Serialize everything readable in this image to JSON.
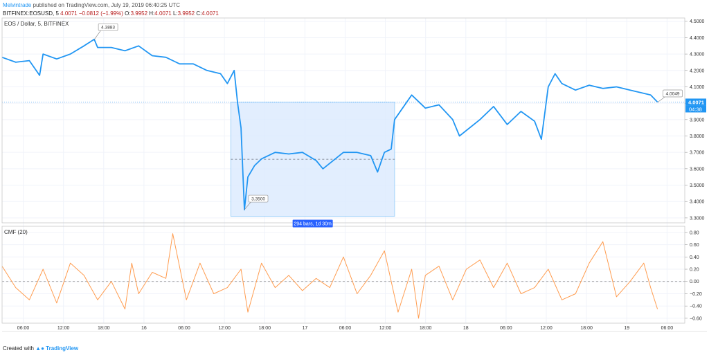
{
  "header": {
    "author": "Melvintrade",
    "published": "published on TradingView.com, July 19, 2019 06:40:25 UTC",
    "symbol": "BITFINEX:EOSUSD, 5",
    "last": "4.0071",
    "change": "−0.0812 (−1.99%)",
    "o_label": "O:",
    "o": "3.9952",
    "h_label": "H:",
    "h": "4.0071",
    "l_label": "L:",
    "l": "3.9952",
    "c_label": "C:",
    "c": "4.0071"
  },
  "legend": {
    "main": "EOS / Dollar, 5, BITFINEX",
    "indicator": "CMF (20)"
  },
  "labels": {
    "last_price": "4.0071",
    "countdown": "04:38",
    "high": "4.3883",
    "low": "3.3500",
    "right": "4.0049",
    "range": "294 bars, 1d 30m"
  },
  "footer": {
    "created_with": "Created with",
    "brand": "TradingView"
  },
  "colors": {
    "price": "#2196f3",
    "cmf": "#ff9c4f",
    "range_fill": "#dbeafe",
    "range_label": "#2962ff"
  },
  "chart_data": [
    {
      "type": "line",
      "title": "EOS / Dollar, 5, BITFINEX",
      "x_tick_labels": [
        "06:00",
        "12:00",
        "18:00",
        "16",
        "06:00",
        "12:00",
        "18:00",
        "17",
        "06:00",
        "12:00",
        "18:00",
        "18",
        "06:00",
        "12:00",
        "18:00",
        "19",
        "06:00"
      ],
      "y_tick_labels": [
        "4.5000",
        "4.4000",
        "4.3000",
        "4.2000",
        "4.1000",
        "4.0000",
        "3.9000",
        "3.8000",
        "3.7000",
        "3.6000",
        "3.5000",
        "3.4000",
        "3.3000"
      ],
      "ylim": [
        3.27,
        4.52
      ],
      "grid": true,
      "series": [
        {
          "x": [
            0,
            0.02,
            0.04,
            0.055,
            0.06,
            0.08,
            0.1,
            0.12,
            0.135,
            0.14,
            0.16,
            0.18,
            0.2,
            0.22,
            0.24,
            0.26,
            0.28,
            0.3,
            0.32,
            0.33,
            0.34,
            0.345,
            0.35,
            0.355,
            0.36,
            0.37,
            0.38,
            0.4,
            0.42,
            0.44,
            0.46,
            0.47,
            0.5,
            0.52,
            0.54,
            0.55,
            0.56,
            0.57,
            0.575,
            0.6,
            0.62,
            0.64,
            0.66,
            0.67,
            0.7,
            0.72,
            0.74,
            0.76,
            0.78,
            0.79,
            0.8,
            0.81,
            0.82,
            0.84,
            0.86,
            0.88,
            0.9,
            0.92,
            0.94,
            0.95,
            0.96
          ],
          "values": [
            4.28,
            4.25,
            4.26,
            4.17,
            4.3,
            4.27,
            4.3,
            4.35,
            4.39,
            4.34,
            4.34,
            4.32,
            4.35,
            4.29,
            4.28,
            4.24,
            4.24,
            4.2,
            4.18,
            4.12,
            4.2,
            4.0,
            3.85,
            3.35,
            3.55,
            3.62,
            3.66,
            3.7,
            3.69,
            3.7,
            3.65,
            3.6,
            3.7,
            3.7,
            3.68,
            3.58,
            3.7,
            3.72,
            3.9,
            4.05,
            3.97,
            3.99,
            3.9,
            3.8,
            3.9,
            3.98,
            3.87,
            3.95,
            3.89,
            3.78,
            4.1,
            4.18,
            4.12,
            4.08,
            4.11,
            4.09,
            4.1,
            4.08,
            4.06,
            4.05,
            4.0071
          ]
        }
      ],
      "markers": [
        {
          "x": 0.135,
          "y": 4.3883,
          "label": "4.3883"
        },
        {
          "x": 0.355,
          "y": 3.35,
          "label": "3.3500"
        },
        {
          "x": 0.96,
          "y": 4.0049,
          "label": "4.0049"
        }
      ],
      "range_selection": {
        "x_start": 0.335,
        "x_end": 0.575,
        "y_low": 3.31,
        "y_high": 4.0071,
        "mid": 3.658,
        "label": "294 bars, 1d 30m"
      }
    },
    {
      "type": "line",
      "title": "CMF (20)",
      "y_tick_labels": [
        "0.80",
        "0.60",
        "0.40",
        "0.20",
        "0.00",
        "−0.20",
        "−0.40",
        "−0.60"
      ],
      "ylim": [
        -0.68,
        0.9
      ],
      "zero_line": 0,
      "series": [
        {
          "x": [
            0,
            0.02,
            0.04,
            0.06,
            0.08,
            0.1,
            0.12,
            0.14,
            0.16,
            0.18,
            0.19,
            0.2,
            0.22,
            0.24,
            0.25,
            0.27,
            0.29,
            0.31,
            0.33,
            0.35,
            0.36,
            0.38,
            0.4,
            0.42,
            0.44,
            0.46,
            0.48,
            0.5,
            0.52,
            0.54,
            0.56,
            0.58,
            0.6,
            0.61,
            0.62,
            0.64,
            0.66,
            0.68,
            0.7,
            0.72,
            0.74,
            0.76,
            0.78,
            0.8,
            0.82,
            0.84,
            0.86,
            0.88,
            0.9,
            0.92,
            0.94,
            0.95,
            0.96
          ],
          "values": [
            0.25,
            -0.1,
            -0.3,
            0.2,
            -0.35,
            0.3,
            0.1,
            -0.3,
            0.0,
            -0.45,
            0.3,
            -0.2,
            0.15,
            0.05,
            0.78,
            -0.3,
            0.3,
            -0.2,
            -0.1,
            0.2,
            -0.5,
            0.3,
            -0.1,
            0.1,
            -0.15,
            0.05,
            -0.1,
            0.4,
            -0.2,
            0.1,
            0.5,
            -0.5,
            0.2,
            -0.6,
            0.1,
            0.25,
            -0.3,
            0.2,
            0.35,
            -0.1,
            0.3,
            -0.2,
            -0.1,
            0.2,
            -0.3,
            -0.2,
            0.3,
            0.65,
            -0.25,
            0.0,
            0.3,
            -0.1,
            -0.45
          ]
        }
      ]
    }
  ]
}
